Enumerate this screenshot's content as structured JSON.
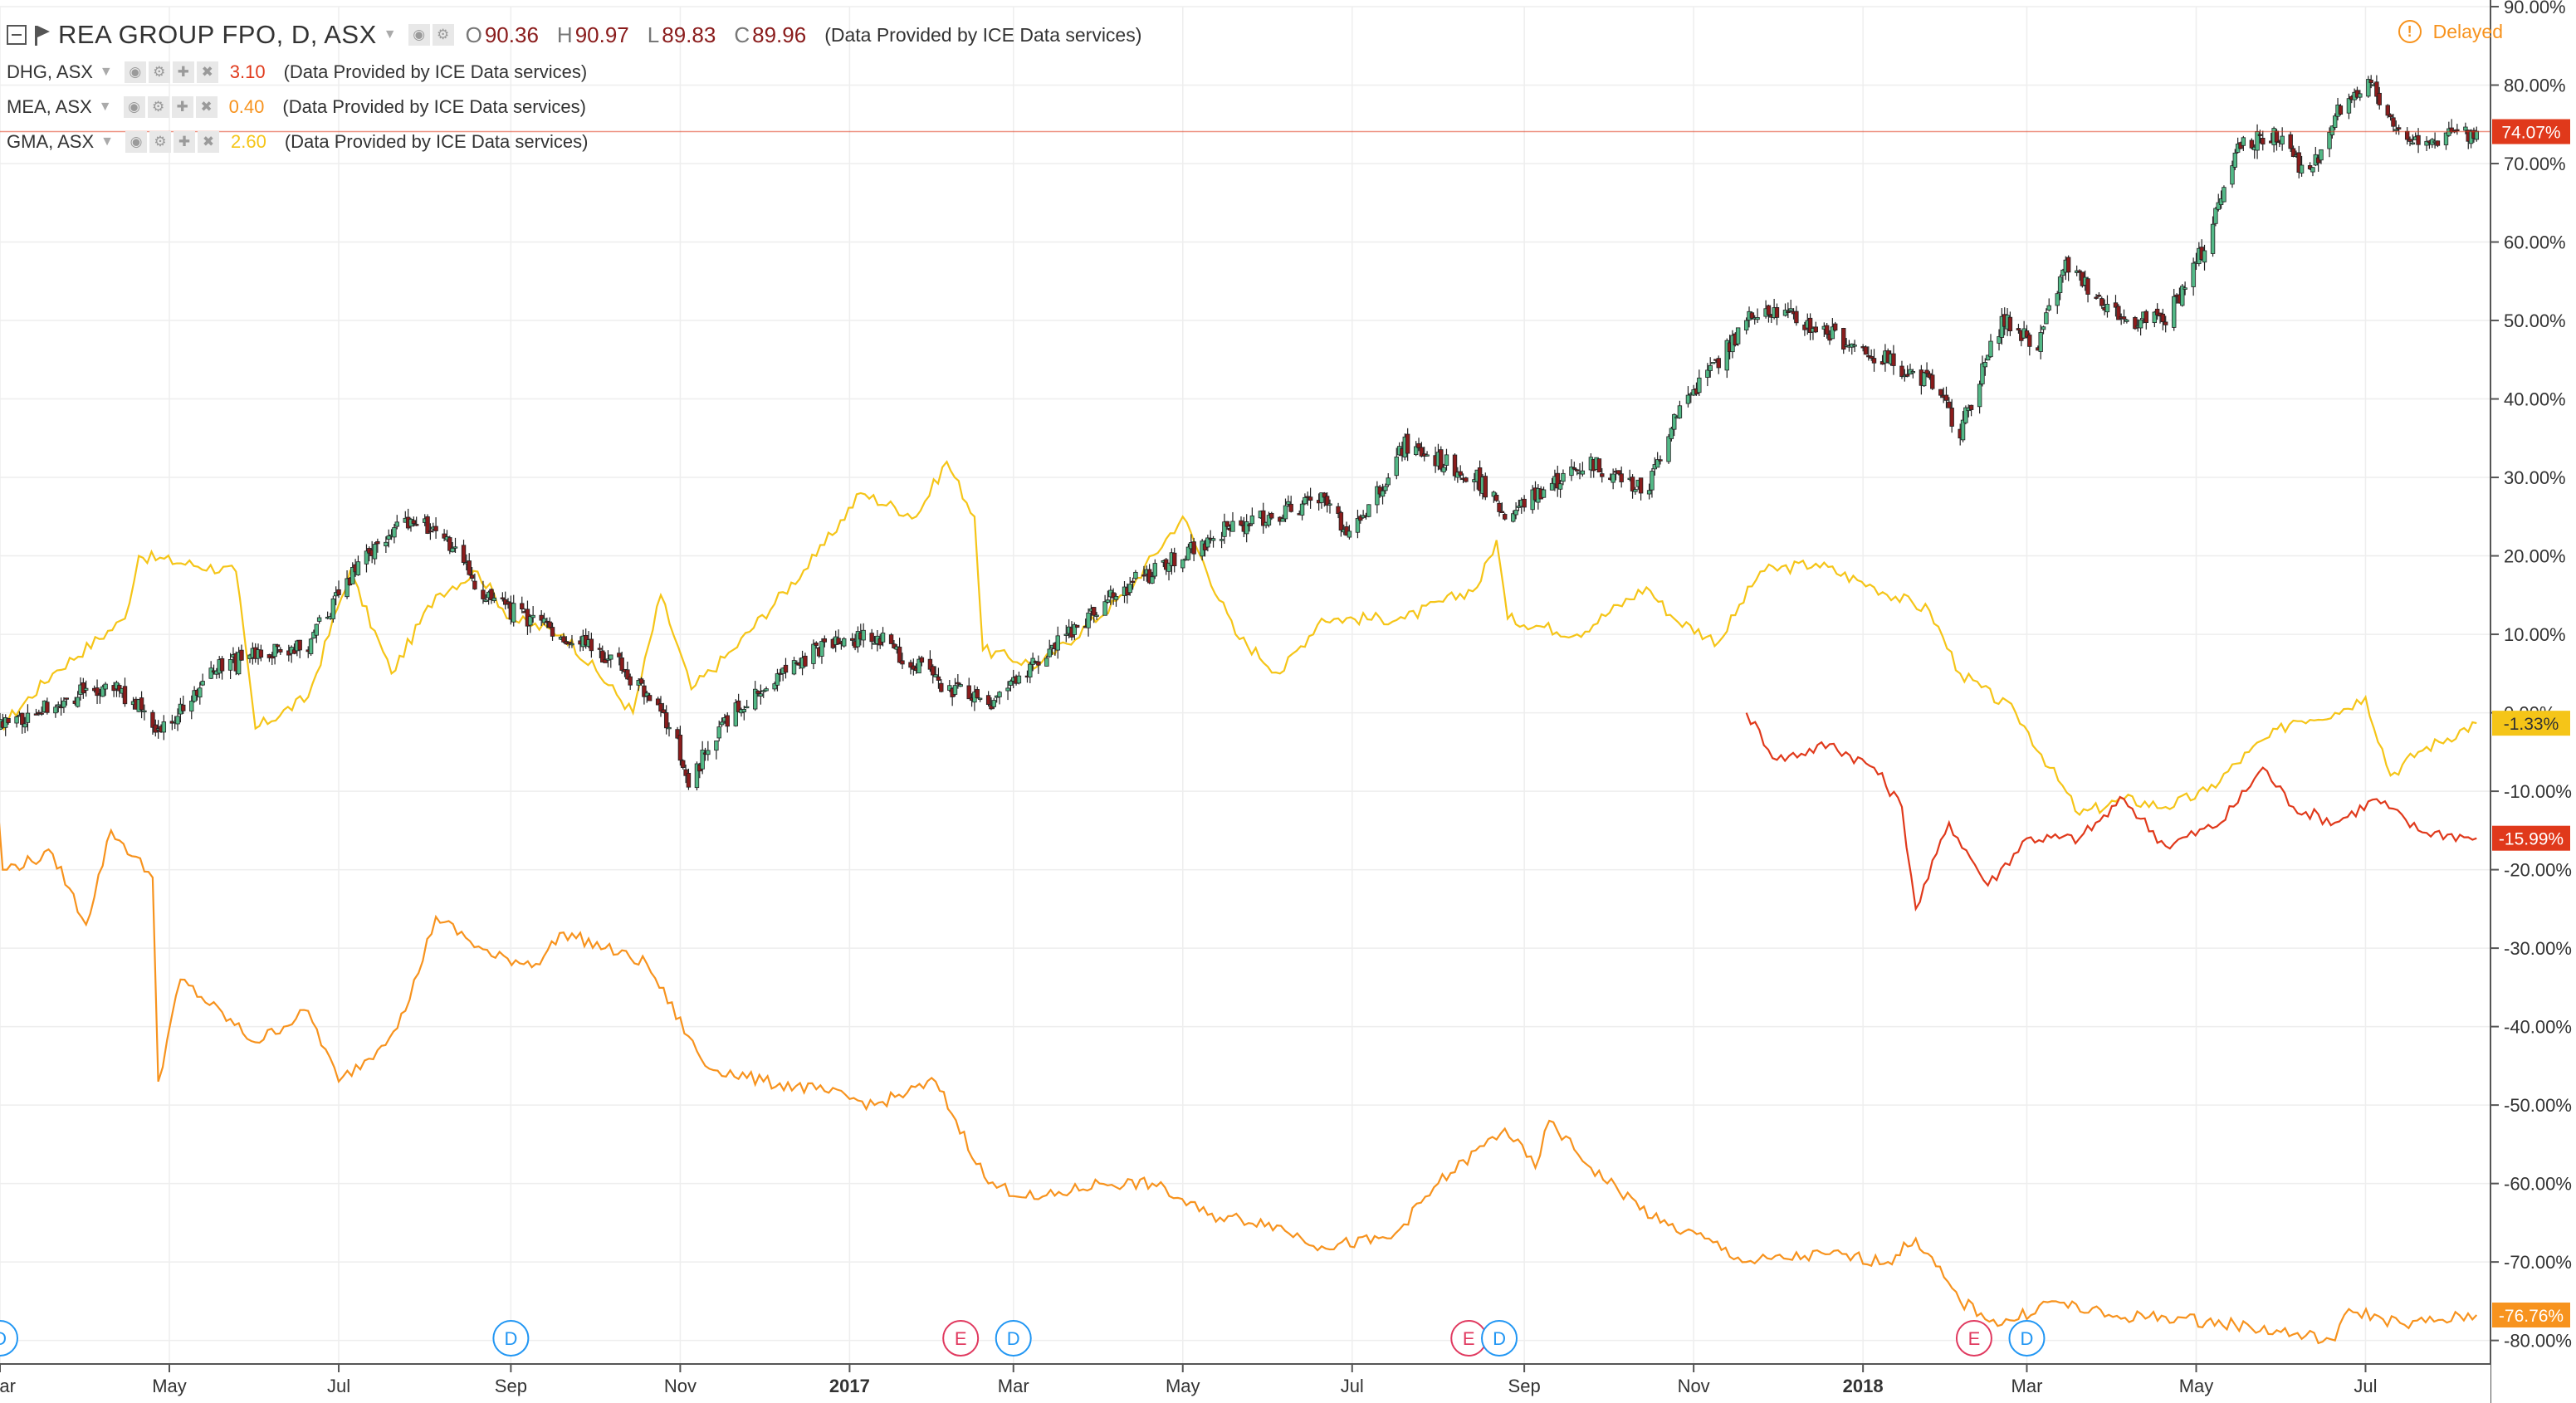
{
  "header": {
    "main": {
      "title": "REA GROUP FPO, D, ASX",
      "open_label": "O",
      "open": "90.36",
      "high_label": "H",
      "high": "90.97",
      "low_label": "L",
      "low": "89.83",
      "close_label": "C",
      "close": "89.96",
      "provider": "(Data Provided by ICE Data services)"
    },
    "compare": [
      {
        "symbol": "DHG, ASX",
        "value": "3.10",
        "color": "#e0391b",
        "provider": "(Data Provided by ICE Data services)"
      },
      {
        "symbol": "MEA, ASX",
        "value": "0.40",
        "color": "#f7931e",
        "provider": "(Data Provided by ICE Data services)"
      },
      {
        "symbol": "GMA, ASX",
        "value": "2.60",
        "color": "#f5c518",
        "provider": "(Data Provided by ICE Data services)"
      }
    ],
    "delayed_label": "Delayed",
    "delayed_icon": "!"
  },
  "chart_data": {
    "type": "line",
    "title": "REA GROUP FPO, D, ASX",
    "y_axis": {
      "unit": "%",
      "range": [
        -83,
        90
      ],
      "position": "right",
      "ticks": [
        "90.00%",
        "80.00%",
        "70.00%",
        "60.00%",
        "50.00%",
        "40.00%",
        "30.00%",
        "20.00%",
        "10.00%",
        "0.00%",
        "-10.00%",
        "-20.00%",
        "-30.00%",
        "-40.00%",
        "-50.00%",
        "-60.00%",
        "-70.00%",
        "-80.00%"
      ]
    },
    "x_axis": {
      "start": "2016-03-01",
      "end": "2018-08-15",
      "ticks": [
        {
          "date": "2016-03-01",
          "label": "Mar"
        },
        {
          "date": "2016-05-01",
          "label": "May"
        },
        {
          "date": "2016-07-01",
          "label": "Jul"
        },
        {
          "date": "2016-09-01",
          "label": "Sep"
        },
        {
          "date": "2016-11-01",
          "label": "Nov"
        },
        {
          "date": "2017-01-01",
          "label": "2017",
          "bold": true
        },
        {
          "date": "2017-03-01",
          "label": "Mar"
        },
        {
          "date": "2017-05-01",
          "label": "May"
        },
        {
          "date": "2017-07-01",
          "label": "Jul"
        },
        {
          "date": "2017-09-01",
          "label": "Sep"
        },
        {
          "date": "2017-11-01",
          "label": "Nov"
        },
        {
          "date": "2018-01-01",
          "label": "2018",
          "bold": true
        },
        {
          "date": "2018-03-01",
          "label": "Mar"
        },
        {
          "date": "2018-05-01",
          "label": "May"
        },
        {
          "date": "2018-07-01",
          "label": "Jul"
        }
      ]
    },
    "grid": true,
    "series": [
      {
        "name": "REA GROUP FPO, D, ASX",
        "type": "candlestick",
        "up_color": "#53b987",
        "down_color": "#8a1c1c",
        "last_label": "74.07%",
        "last_value": 74.07,
        "points": [
          [
            "2016-02-27",
            -2
          ],
          [
            "2016-03-20",
            1
          ],
          [
            "2016-04-10",
            4
          ],
          [
            "2016-04-28",
            -2
          ],
          [
            "2016-05-20",
            6
          ],
          [
            "2016-06-20",
            9
          ],
          [
            "2016-07-10",
            20
          ],
          [
            "2016-07-28",
            25
          ],
          [
            "2016-08-10",
            21
          ],
          [
            "2016-08-25",
            14
          ],
          [
            "2016-09-15",
            11
          ],
          [
            "2016-10-10",
            6
          ],
          [
            "2016-10-31",
            -3
          ],
          [
            "2016-11-03",
            -9
          ],
          [
            "2016-11-20",
            0
          ],
          [
            "2016-12-20",
            8
          ],
          [
            "2017-01-10",
            10
          ],
          [
            "2017-02-01",
            4
          ],
          [
            "2017-02-20",
            1
          ],
          [
            "2017-03-15",
            8
          ],
          [
            "2017-04-10",
            16
          ],
          [
            "2017-05-01",
            20
          ],
          [
            "2017-05-20",
            24
          ],
          [
            "2017-06-20",
            27
          ],
          [
            "2017-07-01",
            23
          ],
          [
            "2017-07-20",
            34
          ],
          [
            "2017-08-15",
            30
          ],
          [
            "2017-08-25",
            25
          ],
          [
            "2017-09-10",
            29
          ],
          [
            "2017-09-25",
            32
          ],
          [
            "2017-10-15",
            28
          ],
          [
            "2017-10-25",
            38
          ],
          [
            "2017-11-10",
            45
          ],
          [
            "2017-11-25",
            52
          ],
          [
            "2017-12-15",
            49
          ],
          [
            "2018-01-10",
            45
          ],
          [
            "2018-01-25",
            42
          ],
          [
            "2018-02-05",
            36
          ],
          [
            "2018-02-20",
            50
          ],
          [
            "2018-03-05",
            47
          ],
          [
            "2018-03-15",
            57
          ],
          [
            "2018-04-05",
            50
          ],
          [
            "2018-04-20",
            50
          ],
          [
            "2018-05-05",
            60
          ],
          [
            "2018-05-15",
            72
          ],
          [
            "2018-06-01",
            74
          ],
          [
            "2018-06-10",
            68
          ],
          [
            "2018-06-20",
            76
          ],
          [
            "2018-07-01",
            81
          ],
          [
            "2018-07-15",
            73
          ],
          [
            "2018-08-10",
            74.07
          ]
        ]
      },
      {
        "name": "GMA, ASX",
        "type": "line",
        "color": "#f5c518",
        "last_label": "-1.33%",
        "last_value": -1.33,
        "points": [
          [
            "2016-02-27",
            -3
          ],
          [
            "2016-03-20",
            5
          ],
          [
            "2016-04-15",
            12
          ],
          [
            "2016-04-20",
            20
          ],
          [
            "2016-05-25",
            18
          ],
          [
            "2016-06-01",
            -2
          ],
          [
            "2016-06-20",
            2
          ],
          [
            "2016-07-05",
            18
          ],
          [
            "2016-07-20",
            5
          ],
          [
            "2016-08-05",
            15
          ],
          [
            "2016-08-20",
            18
          ],
          [
            "2016-09-01",
            12
          ],
          [
            "2016-09-20",
            10
          ],
          [
            "2016-10-15",
            0
          ],
          [
            "2016-10-25",
            15
          ],
          [
            "2016-11-05",
            3
          ],
          [
            "2016-11-20",
            8
          ],
          [
            "2016-12-20",
            20
          ],
          [
            "2017-01-05",
            28
          ],
          [
            "2017-01-25",
            25
          ],
          [
            "2017-02-05",
            32
          ],
          [
            "2017-02-15",
            25
          ],
          [
            "2017-02-18",
            8
          ],
          [
            "2017-03-10",
            6
          ],
          [
            "2017-04-10",
            15
          ],
          [
            "2017-05-01",
            25
          ],
          [
            "2017-05-20",
            10
          ],
          [
            "2017-06-05",
            5
          ],
          [
            "2017-06-20",
            12
          ],
          [
            "2017-07-20",
            12
          ],
          [
            "2017-08-15",
            16
          ],
          [
            "2017-08-22",
            22
          ],
          [
            "2017-08-26",
            12
          ],
          [
            "2017-09-20",
            10
          ],
          [
            "2017-10-15",
            16
          ],
          [
            "2017-10-25",
            12
          ],
          [
            "2017-11-10",
            9
          ],
          [
            "2017-11-25",
            18
          ],
          [
            "2017-12-15",
            19
          ],
          [
            "2018-01-05",
            16
          ],
          [
            "2018-01-25",
            13
          ],
          [
            "2018-02-05",
            5
          ],
          [
            "2018-02-25",
            0
          ],
          [
            "2018-03-20",
            -13
          ],
          [
            "2018-04-05",
            -11
          ],
          [
            "2018-04-20",
            -12
          ],
          [
            "2018-05-05",
            -10
          ],
          [
            "2018-05-20",
            -5
          ],
          [
            "2018-06-05",
            -1
          ],
          [
            "2018-06-20",
            0
          ],
          [
            "2018-07-01",
            2
          ],
          [
            "2018-07-10",
            -8
          ],
          [
            "2018-07-20",
            -5
          ],
          [
            "2018-08-10",
            -1.33
          ]
        ]
      },
      {
        "name": "DHG, ASX",
        "type": "line",
        "color": "#e0391b",
        "last_label": "-15.99%",
        "last_value": -15.99,
        "points": [
          [
            "2017-11-20",
            0
          ],
          [
            "2017-12-01",
            -6
          ],
          [
            "2017-12-20",
            -4
          ],
          [
            "2018-01-05",
            -7
          ],
          [
            "2018-01-15",
            -12
          ],
          [
            "2018-01-20",
            -25
          ],
          [
            "2018-02-01",
            -14
          ],
          [
            "2018-02-15",
            -22
          ],
          [
            "2018-03-01",
            -16
          ],
          [
            "2018-03-20",
            -16
          ],
          [
            "2018-04-05",
            -11
          ],
          [
            "2018-04-20",
            -17
          ],
          [
            "2018-05-10",
            -14
          ],
          [
            "2018-05-25",
            -7
          ],
          [
            "2018-06-05",
            -12
          ],
          [
            "2018-06-20",
            -14
          ],
          [
            "2018-07-05",
            -11
          ],
          [
            "2018-07-20",
            -15
          ],
          [
            "2018-08-10",
            -15.99
          ]
        ]
      },
      {
        "name": "MEA, ASX",
        "type": "line",
        "color": "#f7931e",
        "last_label": "-76.76%",
        "last_value": -76.76,
        "points": [
          [
            "2016-02-27",
            -3
          ],
          [
            "2016-03-02",
            -20
          ],
          [
            "2016-03-20",
            -18
          ],
          [
            "2016-04-01",
            -27
          ],
          [
            "2016-04-10",
            -15
          ],
          [
            "2016-04-25",
            -21
          ],
          [
            "2016-04-27",
            -47
          ],
          [
            "2016-05-05",
            -34
          ],
          [
            "2016-06-01",
            -42
          ],
          [
            "2016-06-20",
            -38
          ],
          [
            "2016-07-01",
            -47
          ],
          [
            "2016-07-15",
            -43
          ],
          [
            "2016-07-25",
            -38
          ],
          [
            "2016-08-05",
            -26
          ],
          [
            "2016-08-25",
            -31
          ],
          [
            "2016-09-10",
            -32
          ],
          [
            "2016-09-20",
            -28
          ],
          [
            "2016-10-05",
            -30
          ],
          [
            "2016-10-20",
            -32
          ],
          [
            "2016-11-10",
            -45
          ],
          [
            "2016-12-01",
            -47
          ],
          [
            "2016-12-20",
            -48
          ],
          [
            "2017-01-10",
            -50
          ],
          [
            "2017-02-01",
            -47
          ],
          [
            "2017-02-20",
            -60
          ],
          [
            "2017-03-10",
            -62
          ],
          [
            "2017-04-01",
            -60
          ],
          [
            "2017-04-20",
            -60
          ],
          [
            "2017-05-10",
            -64
          ],
          [
            "2017-06-01",
            -65
          ],
          [
            "2017-06-20",
            -68
          ],
          [
            "2017-07-15",
            -67
          ],
          [
            "2017-08-01",
            -60
          ],
          [
            "2017-08-25",
            -53
          ],
          [
            "2017-09-05",
            -58
          ],
          [
            "2017-09-10",
            -52
          ],
          [
            "2017-09-25",
            -58
          ],
          [
            "2017-10-20",
            -65
          ],
          [
            "2017-11-05",
            -67
          ],
          [
            "2017-11-20",
            -70
          ],
          [
            "2017-12-20",
            -69
          ],
          [
            "2018-01-10",
            -70
          ],
          [
            "2018-01-20",
            -67
          ],
          [
            "2018-02-05",
            -75
          ],
          [
            "2018-02-20",
            -78
          ],
          [
            "2018-03-10",
            -75
          ],
          [
            "2018-04-01",
            -77
          ],
          [
            "2018-04-20",
            -77
          ],
          [
            "2018-05-15",
            -78
          ],
          [
            "2018-06-20",
            -80
          ],
          [
            "2018-06-25",
            -76
          ],
          [
            "2018-07-15",
            -78
          ],
          [
            "2018-08-10",
            -76.76
          ]
        ]
      }
    ],
    "crosshair": {
      "value": 74.07,
      "color": "#e0391b"
    },
    "events": [
      {
        "date": "2016-03-01",
        "label": "D",
        "kind": "dividend"
      },
      {
        "date": "2016-09-01",
        "label": "D",
        "kind": "dividend"
      },
      {
        "date": "2017-02-10",
        "label": "E",
        "kind": "earnings"
      },
      {
        "date": "2017-03-01",
        "label": "D",
        "kind": "dividend"
      },
      {
        "date": "2017-08-12",
        "label": "E",
        "kind": "earnings"
      },
      {
        "date": "2017-08-23",
        "label": "D",
        "kind": "dividend"
      },
      {
        "date": "2018-02-10",
        "label": "E",
        "kind": "earnings"
      },
      {
        "date": "2018-03-01",
        "label": "D",
        "kind": "dividend"
      }
    ],
    "colors": {
      "grid": "#eeeeee",
      "axis": "#333333",
      "dividend": "#2196f3",
      "earnings": "#e0395f"
    }
  }
}
